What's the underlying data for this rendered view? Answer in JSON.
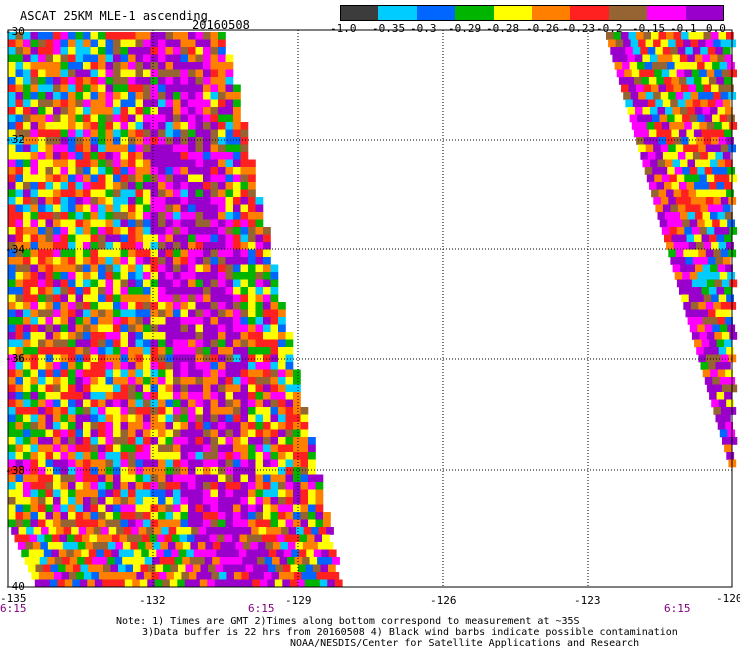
{
  "title": "ASCAT 25KM MLE-1 ascending",
  "date": "20160508",
  "colorbar": {
    "colors": [
      "#3c3c3c",
      "#00ccff",
      "#0066ff",
      "#00b400",
      "#ffff00",
      "#ff8000",
      "#ff2020",
      "#966432",
      "#ff00ff",
      "#9900cc"
    ],
    "tick_labels": [
      "-1.0",
      "-0.35",
      "-0.3",
      "-0.29",
      "-0.28",
      "-0.26",
      "-0.23",
      "-0.2",
      "-0.15",
      "-0.1",
      "0.0"
    ]
  },
  "map": {
    "lat_labels": [
      "-30",
      "-32",
      "-34",
      "-36",
      "-38",
      "-40"
    ],
    "lon_labels": [
      "-135",
      "-132",
      "-129",
      "-126",
      "-123",
      "-120"
    ],
    "time_labels": [
      "6:15",
      "6:15",
      "6:15"
    ],
    "lat_range": [
      -40,
      -30
    ],
    "lon_range": [
      -135,
      -120
    ]
  },
  "notes": {
    "line1": "Note: 1) Times are GMT 2)Times along bottom correspond to measurement at ~35S",
    "line2": "3)Data buffer is 22 hrs from 20160508 4) Black wind barbs indicate possible contamination",
    "line3": "NOAA/NESDIS/Center for Satellite Applications and Research"
  }
}
